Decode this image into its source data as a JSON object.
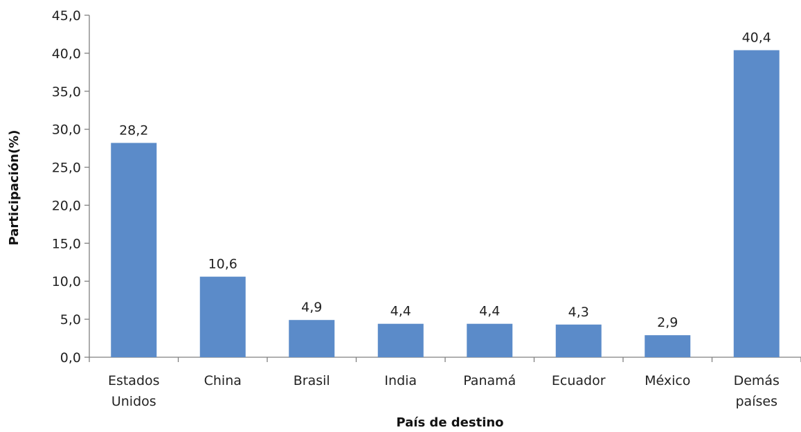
{
  "chart_data": {
    "type": "bar",
    "title": "",
    "xlabel": "País de destino",
    "ylabel": "Participación(%)",
    "categories": [
      [
        "Estados",
        "Unidos"
      ],
      [
        "China"
      ],
      [
        "Brasil"
      ],
      [
        "India"
      ],
      [
        "Panamá"
      ],
      [
        "Ecuador"
      ],
      [
        "México"
      ],
      [
        "Demás",
        "países"
      ]
    ],
    "values": [
      28.2,
      10.6,
      4.9,
      4.4,
      4.4,
      4.3,
      2.9,
      40.4
    ],
    "value_labels": [
      "28,2",
      "10,6",
      "4,9",
      "4,4",
      "4,4",
      "4,3",
      "2,9",
      "40,4"
    ],
    "ylim": [
      0,
      45
    ],
    "yticks": [
      0,
      5,
      10,
      15,
      20,
      25,
      30,
      35,
      40,
      45
    ],
    "ytick_labels": [
      "0,0",
      "5,0",
      "10,0",
      "15,0",
      "20,0",
      "25,0",
      "30,0",
      "35,0",
      "40,0",
      "45,0"
    ],
    "grid": false,
    "legend": "none",
    "bar_color": "#5B8BC9"
  }
}
